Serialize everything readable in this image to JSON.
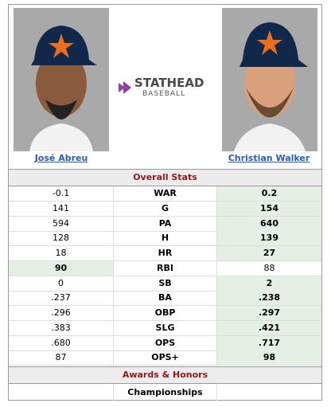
{
  "players": [
    {
      "name": "José Abreu"
    },
    {
      "name": "Christian Walker"
    }
  ],
  "logo": {
    "brand": "STATHEAD",
    "sport": "BASEBALL"
  },
  "sections": {
    "overall": "Overall Stats",
    "awards": "Awards & Honors"
  },
  "stats": [
    {
      "stat": "WAR",
      "left": "-0.1",
      "right": "0.2",
      "leader": "right"
    },
    {
      "stat": "G",
      "left": "141",
      "right": "154",
      "leader": "right"
    },
    {
      "stat": "PA",
      "left": "594",
      "right": "640",
      "leader": "right"
    },
    {
      "stat": "H",
      "left": "128",
      "right": "139",
      "leader": "right"
    },
    {
      "stat": "HR",
      "left": "18",
      "right": "27",
      "leader": "right"
    },
    {
      "stat": "RBI",
      "left": "90",
      "right": "88",
      "leader": "left"
    },
    {
      "stat": "SB",
      "left": "0",
      "right": "2",
      "leader": "right"
    },
    {
      "stat": "BA",
      "left": ".237",
      "right": ".238",
      "leader": "right"
    },
    {
      "stat": "OBP",
      "left": ".296",
      "right": ".297",
      "leader": "right"
    },
    {
      "stat": "SLG",
      "left": ".383",
      "right": ".421",
      "leader": "right"
    },
    {
      "stat": "OPS",
      "left": ".680",
      "right": ".717",
      "leader": "right"
    },
    {
      "stat": "OPS+",
      "left": "87",
      "right": "98",
      "leader": "right"
    }
  ],
  "awards": [
    {
      "stat": "Championships"
    }
  ]
}
